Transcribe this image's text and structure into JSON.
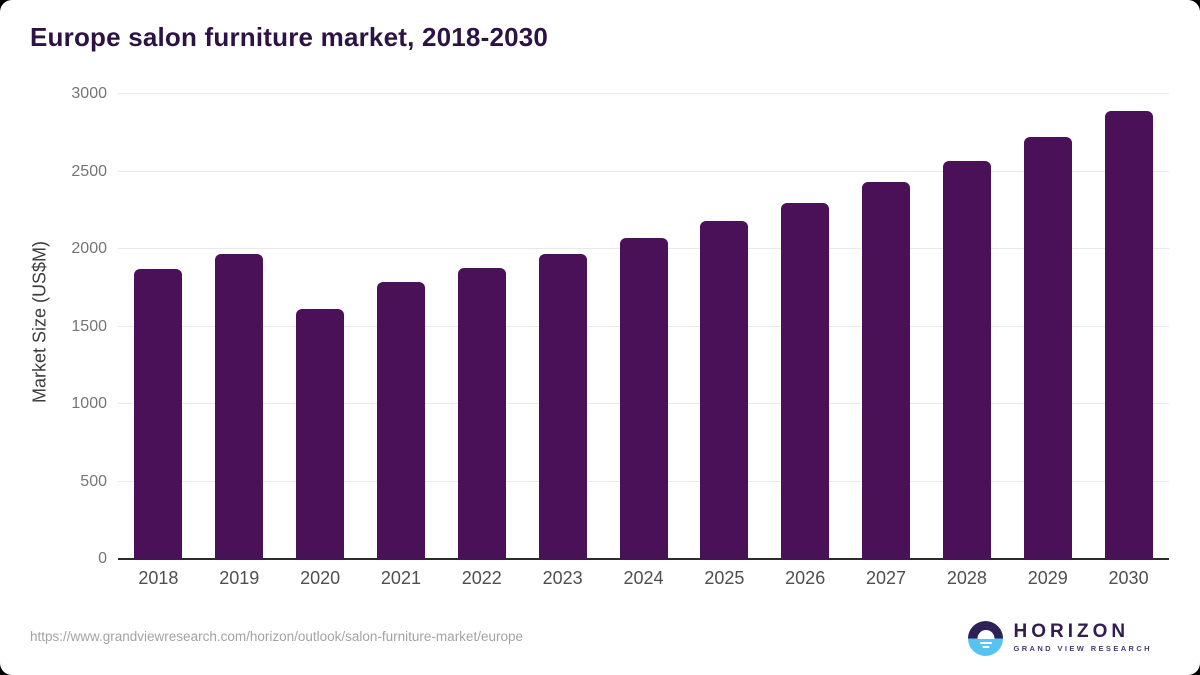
{
  "title": "Europe salon furniture market, 2018-2030",
  "chart_data": {
    "type": "bar",
    "categories": [
      "2018",
      "2019",
      "2020",
      "2021",
      "2022",
      "2023",
      "2024",
      "2025",
      "2026",
      "2027",
      "2028",
      "2029",
      "2030"
    ],
    "values": [
      1870,
      1970,
      1610,
      1790,
      1880,
      1970,
      2070,
      2180,
      2300,
      2430,
      2570,
      2720,
      2890
    ],
    "title": "Europe salon furniture market, 2018-2030",
    "xlabel": "",
    "ylabel": "Market Size (US$M)",
    "ylim": [
      0,
      3000
    ],
    "yticks": [
      0,
      500,
      1000,
      1500,
      2000,
      2500,
      3000
    ],
    "grid": "horizontal",
    "legend": "none",
    "bar_color": "#4a1158"
  },
  "colors": {
    "bar": "#4a1158",
    "title": "#2d1245",
    "gridline": "#e9e9eb",
    "axis_line": "#2b2b2b",
    "y_tick": "#757575",
    "x_tick": "#4f4f4f",
    "url_text": "#a3a3a3",
    "logo_dark": "#2e2157",
    "logo_blue": "#55c4f0"
  },
  "footer": {
    "source_url": "https://www.grandviewresearch.com/horizon/outlook/salon-furniture-market/europe",
    "logo": {
      "wordmark": "HORIZON",
      "subtitle": "GRAND VIEW RESEARCH"
    }
  }
}
